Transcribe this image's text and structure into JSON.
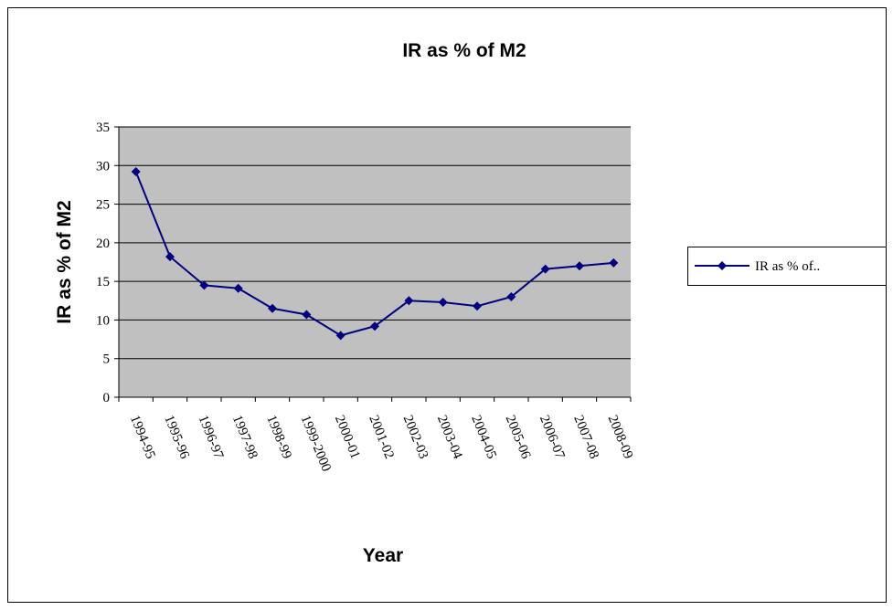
{
  "chart_data": {
    "type": "line",
    "title": "IR as % of M2",
    "x_label": "Year",
    "y_label": "IR as % of M2",
    "categories": [
      "1994-95",
      "1995-96",
      "1996-97",
      "1997-98",
      "1998-99",
      "1999-2000",
      "2000-01",
      "2001-02",
      "2002-03",
      "2003-04",
      "2004-05",
      "2005-06",
      "2006-07",
      "2007-08",
      "2008-09"
    ],
    "series": [
      {
        "name": "IR as % of..",
        "color": "#000080",
        "values": [
          29.2,
          18.2,
          14.5,
          14.1,
          11.5,
          10.7,
          8.0,
          9.2,
          12.5,
          12.3,
          11.8,
          13.0,
          16.6,
          17.0,
          17.4
        ]
      }
    ],
    "ylim": [
      0,
      35
    ],
    "yticks": [
      0,
      5,
      10,
      15,
      20,
      25,
      30,
      35
    ],
    "grid": true,
    "legend": "right",
    "plot_background": "#c0c0c0"
  }
}
